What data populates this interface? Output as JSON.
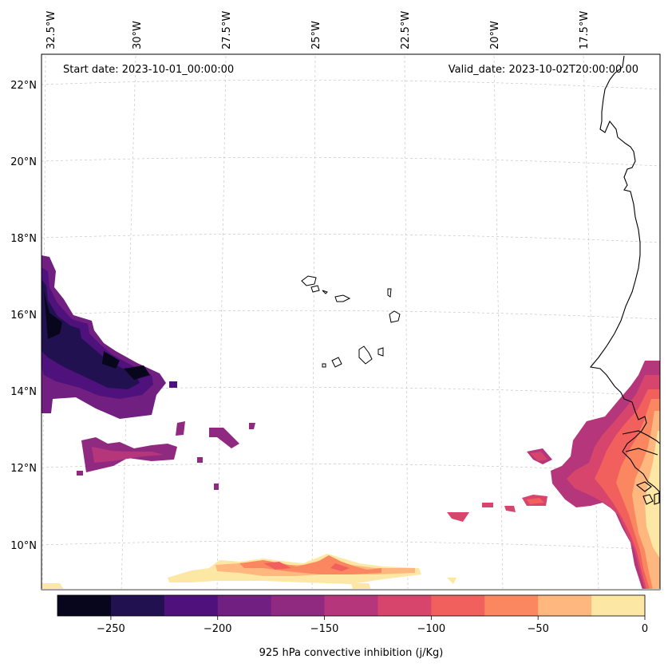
{
  "header": {
    "start_date": "Start date: 2023-10-01_00:00:00",
    "valid_date": "Valid_date: 2023-10-02T20:00:00.00"
  },
  "map": {
    "region": "Cabo Verde / West Africa",
    "lon_ticks": [
      "32.5°W",
      "30°W",
      "27.5°W",
      "25°W",
      "22.5°W",
      "20°W",
      "17.5°W"
    ],
    "lat_ticks": [
      "22°N",
      "20°N",
      "18°N",
      "16°N",
      "14°N",
      "12°N",
      "10°N"
    ]
  },
  "colorbar": {
    "label": "925 hPa convective inhibition (j/Kg)",
    "ticks": [
      "−250",
      "−200",
      "−150",
      "−100",
      "−50",
      "0"
    ],
    "bounds": [
      -275,
      -250,
      -225,
      -200,
      -175,
      -150,
      -125,
      -100,
      -75,
      -50,
      -25,
      0
    ],
    "colors": [
      "#07061c",
      "#221150",
      "#4f117b",
      "#711f81",
      "#902a81",
      "#b5367a",
      "#d8456c",
      "#f1605d",
      "#fb8761",
      "#feb77e",
      "#fde7a4"
    ]
  }
}
